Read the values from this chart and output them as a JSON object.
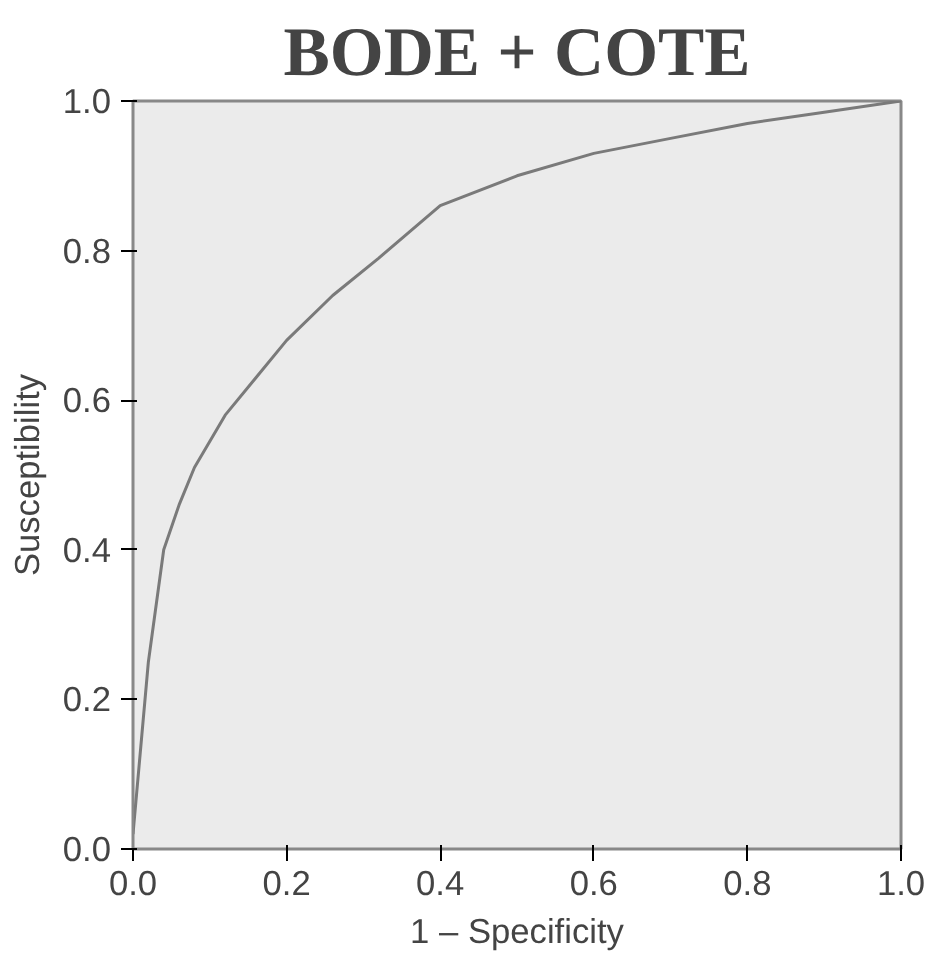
{
  "chart_data": {
    "type": "line",
    "title": "BODE + COTE",
    "xlabel": "1 – Specificity",
    "ylabel": "Susceptibility",
    "x": [
      0,
      0.02,
      0.04,
      0.06,
      0.08,
      0.12,
      0.16,
      0.2,
      0.26,
      0.32,
      0.4,
      0.5,
      0.6,
      0.7,
      0.8,
      0.9,
      1.0
    ],
    "series": [
      {
        "color": "#7a7a7a",
        "values": [
          0.02,
          0.25,
          0.4,
          0.46,
          0.51,
          0.58,
          0.63,
          0.68,
          0.74,
          0.79,
          0.86,
          0.9,
          0.93,
          0.95,
          0.97,
          0.985,
          1.0
        ]
      }
    ],
    "xlim": [
      0,
      1
    ],
    "ylim": [
      0,
      1
    ],
    "xticks": [
      {
        "value": 0,
        "label": "0.0"
      },
      0.2,
      0.4,
      0.6,
      0.8,
      {
        "value": 1,
        "label": "1.0"
      }
    ],
    "yticks": [
      {
        "value": 0,
        "label": "0.0"
      },
      0.2,
      0.4,
      0.6,
      0.8,
      {
        "value": 1,
        "label": "1.0"
      }
    ],
    "grid": false,
    "marker": "none",
    "line_style": "solid"
  }
}
